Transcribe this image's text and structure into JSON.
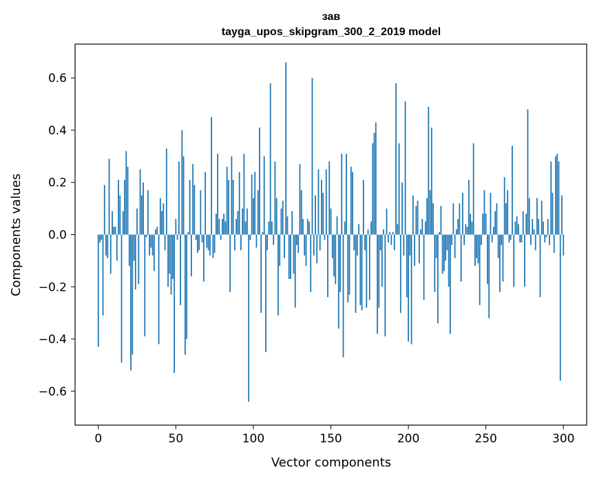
{
  "title": {
    "line1": "зав",
    "line2": "tayga_upos_skipgram_300_2_2019 model"
  },
  "colors": {
    "bar": "#1f77b4",
    "axis": "#000000",
    "background": "#ffffff"
  },
  "chart_data": {
    "type": "bar",
    "title": "зав\ntayga_upos_skipgram_300_2_2019 model",
    "xlabel": "Vector components",
    "ylabel": "Components values",
    "xlim": [
      -15,
      315
    ],
    "ylim": [
      -0.73,
      0.73
    ],
    "grid": false,
    "x_ticks": [
      0,
      50,
      100,
      150,
      200,
      250,
      300
    ],
    "x_tick_labels": [
      "0",
      "50",
      "100",
      "150",
      "200",
      "250",
      "300"
    ],
    "y_ticks": [
      -0.6,
      -0.4,
      -0.2,
      0.0,
      0.2,
      0.4,
      0.6
    ],
    "y_tick_labels": [
      "−0.6",
      "−0.4",
      "−0.2",
      "0.0",
      "0.2",
      "0.4",
      "0.6"
    ],
    "bar_width": 0.8,
    "x_start": 0,
    "values": [
      -0.43,
      -0.03,
      -0.02,
      -0.31,
      0.19,
      -0.08,
      -0.09,
      0.29,
      -0.15,
      0.09,
      0.03,
      0.03,
      -0.1,
      0.21,
      0.15,
      -0.49,
      0.09,
      0.21,
      0.32,
      0.26,
      -0.12,
      -0.52,
      -0.46,
      -0.1,
      -0.21,
      0.1,
      -0.19,
      0.25,
      0.15,
      0.2,
      -0.39,
      -0.01,
      0.17,
      -0.08,
      -0.05,
      -0.08,
      -0.14,
      0.02,
      0.03,
      -0.42,
      0.14,
      0.09,
      0.12,
      -0.06,
      0.33,
      -0.2,
      -0.15,
      -0.23,
      -0.17,
      -0.53,
      0.06,
      -0.02,
      0.28,
      -0.27,
      0.4,
      0.3,
      -0.46,
      -0.4,
      0.01,
      0.21,
      -0.16,
      0.27,
      0.19,
      -0.02,
      -0.07,
      -0.06,
      0.17,
      -0.03,
      -0.18,
      0.24,
      -0.05,
      -0.06,
      -0.08,
      0.45,
      -0.09,
      -0.07,
      0.08,
      0.31,
      0.06,
      -0.02,
      0.06,
      0.08,
      0.05,
      0.26,
      0.21,
      -0.22,
      0.3,
      0.21,
      -0.06,
      0.06,
      0.09,
      0.24,
      -0.06,
      0.1,
      0.31,
      0.05,
      0.1,
      -0.64,
      -0.02,
      0.23,
      0.14,
      0.24,
      -0.05,
      0.17,
      0.41,
      -0.3,
      0.01,
      0.3,
      -0.45,
      -0.06,
      0.05,
      0.58,
      0.05,
      -0.04,
      0.28,
      0.14,
      -0.31,
      -0.12,
      0.1,
      0.13,
      -0.09,
      0.66,
      0.07,
      -0.17,
      -0.17,
      0.09,
      -0.15,
      -0.28,
      -0.04,
      -0.07,
      0.27,
      0.17,
      0.06,
      -0.08,
      -0.12,
      0.06,
      0.05,
      -0.22,
      0.6,
      -0.08,
      0.15,
      -0.11,
      0.25,
      -0.06,
      0.21,
      0.16,
      -0.02,
      0.25,
      -0.24,
      0.28,
      0.1,
      -0.09,
      -0.16,
      -0.19,
      0.07,
      -0.36,
      -0.22,
      0.31,
      -0.47,
      0.05,
      0.31,
      -0.26,
      -0.23,
      0.26,
      0.24,
      -0.06,
      -0.3,
      -0.08,
      0.04,
      -0.27,
      -0.29,
      0.21,
      -0.06,
      -0.28,
      0.02,
      -0.25,
      0.05,
      0.35,
      0.39,
      0.43,
      -0.38,
      -0.28,
      -0.06,
      -0.2,
      0.02,
      -0.39,
      0.1,
      -0.03,
      0.01,
      -0.04,
      0.01,
      -0.06,
      0.58,
      0.04,
      0.35,
      -0.3,
      0.2,
      -0.08,
      0.51,
      -0.24,
      -0.41,
      -0.08,
      -0.42,
      0.15,
      -0.12,
      0.11,
      0.13,
      -0.11,
      0.02,
      0.06,
      -0.25,
      0.05,
      0.14,
      0.49,
      0.17,
      0.41,
      0.12,
      -0.22,
      -0.09,
      -0.34,
      0.01,
      0.11,
      -0.15,
      -0.14,
      -0.1,
      -0.06,
      -0.2,
      -0.38,
      -0.04,
      0.12,
      -0.09,
      0.02,
      0.06,
      0.12,
      -0.18,
      0.16,
      -0.04,
      0.04,
      0.03,
      0.21,
      0.08,
      0.05,
      0.35,
      -0.12,
      -0.09,
      -0.11,
      -0.27,
      -0.04,
      0.08,
      0.17,
      0.08,
      -0.19,
      -0.32,
      0.16,
      -0.03,
      0.03,
      0.09,
      0.12,
      -0.09,
      -0.22,
      -0.04,
      -0.18,
      0.22,
      0.12,
      0.17,
      -0.03,
      -0.02,
      0.34,
      -0.2,
      0.05,
      0.07,
      0.04,
      -0.03,
      -0.03,
      0.09,
      -0.2,
      0.08,
      0.48,
      0.14,
      -0.04,
      0.06,
      0.02,
      -0.06,
      0.14,
      0.06,
      -0.24,
      0.13,
      0.05,
      -0.03,
      -0.01,
      0.06,
      -0.04,
      0.28,
      0.16,
      -0.07,
      0.3,
      0.31,
      0.28,
      -0.56,
      0.15,
      -0.08
    ]
  }
}
